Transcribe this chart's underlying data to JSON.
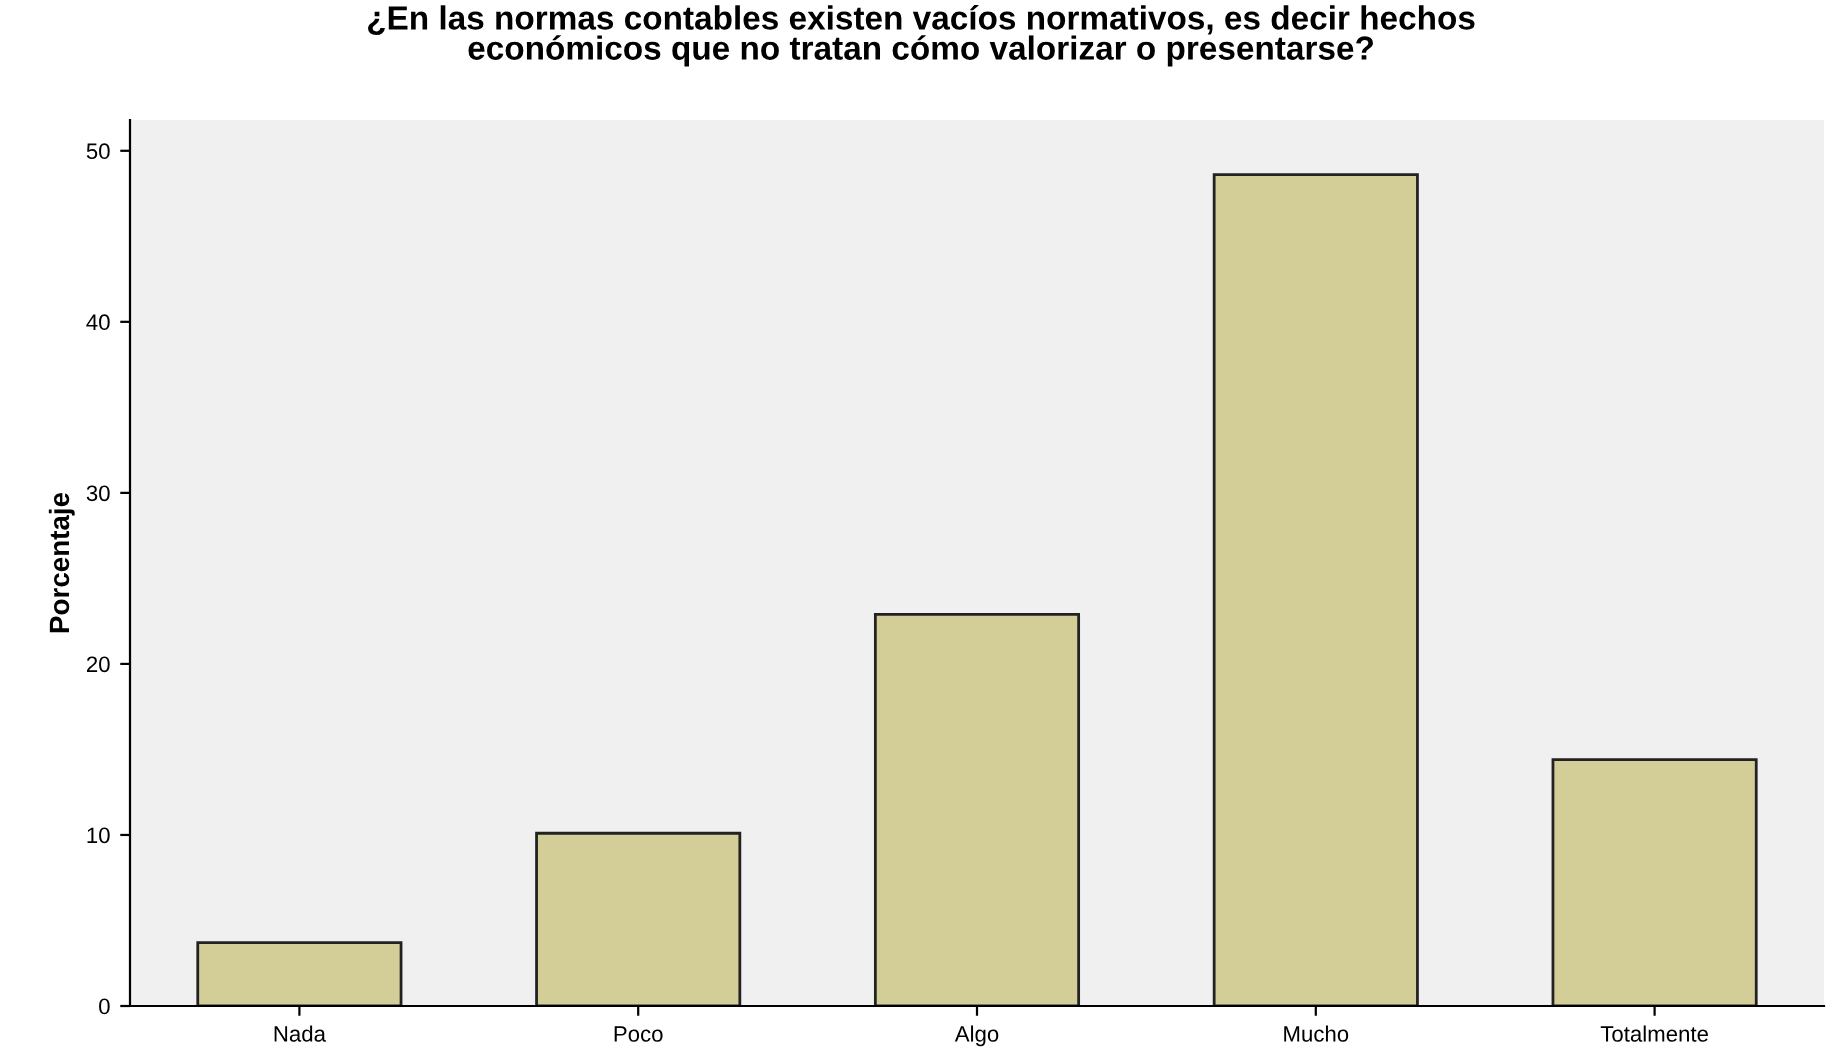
{
  "chart_data": {
    "type": "bar",
    "title": "¿En las normas contables existen vacíos normativos, es decir hechos\neconómicos que no tratan cómo valorizar o presentarse?",
    "ylabel": "Porcentaje",
    "categories": [
      "Nada",
      "Poco",
      "Algo",
      "Mucho",
      "Totalmente"
    ],
    "values": [
      3.7,
      10.1,
      22.9,
      48.6,
      14.4
    ],
    "color": "#d3ce97",
    "ylim": [
      0,
      51.8
    ],
    "yticks": [
      0,
      10,
      20,
      30,
      40,
      50
    ],
    "grid": false,
    "legend": false
  }
}
